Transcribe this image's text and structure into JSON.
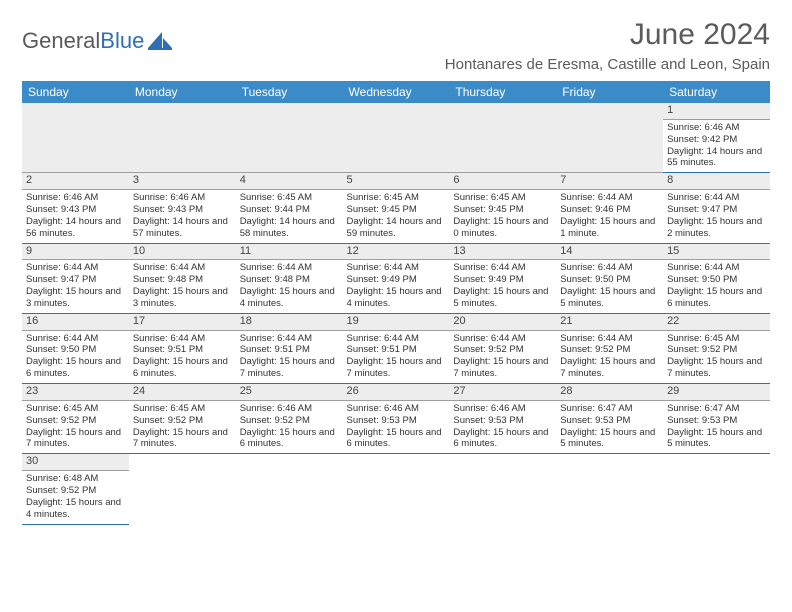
{
  "logo": {
    "general": "General",
    "blue": "Blue"
  },
  "header": {
    "title": "June 2024",
    "location": "Hontanares de Eresma, Castille and Leon, Spain"
  },
  "columns": [
    "Sunday",
    "Monday",
    "Tuesday",
    "Wednesday",
    "Thursday",
    "Friday",
    "Saturday"
  ],
  "colors": {
    "header_bg": "#3b8bc8",
    "header_text": "#ffffff",
    "rule": "#2f6fb3",
    "shade": "#ededed",
    "text": "#333333",
    "title": "#5b5b5b"
  },
  "weeks": [
    [
      null,
      null,
      null,
      null,
      null,
      null,
      {
        "n": "1",
        "sr": "Sunrise: 6:46 AM",
        "ss": "Sunset: 9:42 PM",
        "dl": "Daylight: 14 hours and 55 minutes."
      }
    ],
    [
      {
        "n": "2",
        "sr": "Sunrise: 6:46 AM",
        "ss": "Sunset: 9:43 PM",
        "dl": "Daylight: 14 hours and 56 minutes."
      },
      {
        "n": "3",
        "sr": "Sunrise: 6:46 AM",
        "ss": "Sunset: 9:43 PM",
        "dl": "Daylight: 14 hours and 57 minutes."
      },
      {
        "n": "4",
        "sr": "Sunrise: 6:45 AM",
        "ss": "Sunset: 9:44 PM",
        "dl": "Daylight: 14 hours and 58 minutes."
      },
      {
        "n": "5",
        "sr": "Sunrise: 6:45 AM",
        "ss": "Sunset: 9:45 PM",
        "dl": "Daylight: 14 hours and 59 minutes."
      },
      {
        "n": "6",
        "sr": "Sunrise: 6:45 AM",
        "ss": "Sunset: 9:45 PM",
        "dl": "Daylight: 15 hours and 0 minutes."
      },
      {
        "n": "7",
        "sr": "Sunrise: 6:44 AM",
        "ss": "Sunset: 9:46 PM",
        "dl": "Daylight: 15 hours and 1 minute."
      },
      {
        "n": "8",
        "sr": "Sunrise: 6:44 AM",
        "ss": "Sunset: 9:47 PM",
        "dl": "Daylight: 15 hours and 2 minutes."
      }
    ],
    [
      {
        "n": "9",
        "sr": "Sunrise: 6:44 AM",
        "ss": "Sunset: 9:47 PM",
        "dl": "Daylight: 15 hours and 3 minutes."
      },
      {
        "n": "10",
        "sr": "Sunrise: 6:44 AM",
        "ss": "Sunset: 9:48 PM",
        "dl": "Daylight: 15 hours and 3 minutes."
      },
      {
        "n": "11",
        "sr": "Sunrise: 6:44 AM",
        "ss": "Sunset: 9:48 PM",
        "dl": "Daylight: 15 hours and 4 minutes."
      },
      {
        "n": "12",
        "sr": "Sunrise: 6:44 AM",
        "ss": "Sunset: 9:49 PM",
        "dl": "Daylight: 15 hours and 4 minutes."
      },
      {
        "n": "13",
        "sr": "Sunrise: 6:44 AM",
        "ss": "Sunset: 9:49 PM",
        "dl": "Daylight: 15 hours and 5 minutes."
      },
      {
        "n": "14",
        "sr": "Sunrise: 6:44 AM",
        "ss": "Sunset: 9:50 PM",
        "dl": "Daylight: 15 hours and 5 minutes."
      },
      {
        "n": "15",
        "sr": "Sunrise: 6:44 AM",
        "ss": "Sunset: 9:50 PM",
        "dl": "Daylight: 15 hours and 6 minutes."
      }
    ],
    [
      {
        "n": "16",
        "sr": "Sunrise: 6:44 AM",
        "ss": "Sunset: 9:50 PM",
        "dl": "Daylight: 15 hours and 6 minutes."
      },
      {
        "n": "17",
        "sr": "Sunrise: 6:44 AM",
        "ss": "Sunset: 9:51 PM",
        "dl": "Daylight: 15 hours and 6 minutes."
      },
      {
        "n": "18",
        "sr": "Sunrise: 6:44 AM",
        "ss": "Sunset: 9:51 PM",
        "dl": "Daylight: 15 hours and 7 minutes."
      },
      {
        "n": "19",
        "sr": "Sunrise: 6:44 AM",
        "ss": "Sunset: 9:51 PM",
        "dl": "Daylight: 15 hours and 7 minutes."
      },
      {
        "n": "20",
        "sr": "Sunrise: 6:44 AM",
        "ss": "Sunset: 9:52 PM",
        "dl": "Daylight: 15 hours and 7 minutes."
      },
      {
        "n": "21",
        "sr": "Sunrise: 6:44 AM",
        "ss": "Sunset: 9:52 PM",
        "dl": "Daylight: 15 hours and 7 minutes."
      },
      {
        "n": "22",
        "sr": "Sunrise: 6:45 AM",
        "ss": "Sunset: 9:52 PM",
        "dl": "Daylight: 15 hours and 7 minutes."
      }
    ],
    [
      {
        "n": "23",
        "sr": "Sunrise: 6:45 AM",
        "ss": "Sunset: 9:52 PM",
        "dl": "Daylight: 15 hours and 7 minutes."
      },
      {
        "n": "24",
        "sr": "Sunrise: 6:45 AM",
        "ss": "Sunset: 9:52 PM",
        "dl": "Daylight: 15 hours and 7 minutes."
      },
      {
        "n": "25",
        "sr": "Sunrise: 6:46 AM",
        "ss": "Sunset: 9:52 PM",
        "dl": "Daylight: 15 hours and 6 minutes."
      },
      {
        "n": "26",
        "sr": "Sunrise: 6:46 AM",
        "ss": "Sunset: 9:53 PM",
        "dl": "Daylight: 15 hours and 6 minutes."
      },
      {
        "n": "27",
        "sr": "Sunrise: 6:46 AM",
        "ss": "Sunset: 9:53 PM",
        "dl": "Daylight: 15 hours and 6 minutes."
      },
      {
        "n": "28",
        "sr": "Sunrise: 6:47 AM",
        "ss": "Sunset: 9:53 PM",
        "dl": "Daylight: 15 hours and 5 minutes."
      },
      {
        "n": "29",
        "sr": "Sunrise: 6:47 AM",
        "ss": "Sunset: 9:53 PM",
        "dl": "Daylight: 15 hours and 5 minutes."
      }
    ],
    [
      {
        "n": "30",
        "sr": "Sunrise: 6:48 AM",
        "ss": "Sunset: 9:52 PM",
        "dl": "Daylight: 15 hours and 4 minutes."
      },
      null,
      null,
      null,
      null,
      null,
      null
    ]
  ]
}
